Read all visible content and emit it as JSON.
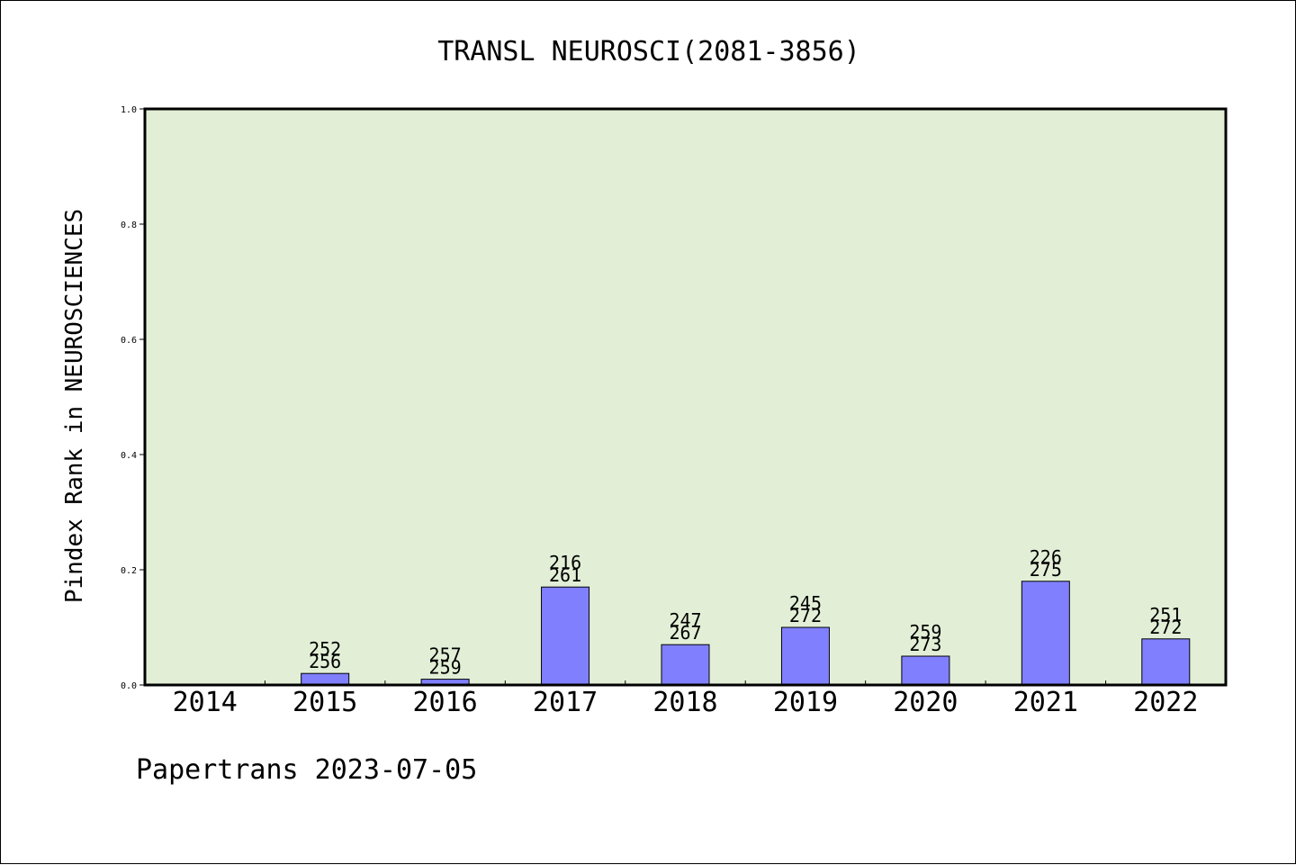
{
  "chart_data": {
    "type": "bar",
    "title": "TRANSL NEUROSCI(2081-3856)",
    "xlabel": "",
    "ylabel": "Pindex Rank in NEUROSCIENCES",
    "ylim": [
      0,
      1.0
    ],
    "yticks": [
      "0.0",
      "0.2",
      "0.4",
      "0.6",
      "0.8",
      "1.0"
    ],
    "grid": false,
    "background_color": "#e2efd6",
    "bar_color": "#8080ff",
    "categories": [
      "2014",
      "2015",
      "2016",
      "2017",
      "2018",
      "2019",
      "2020",
      "2021",
      "2022"
    ],
    "values": [
      0,
      0.02,
      0.01,
      0.17,
      0.07,
      0.1,
      0.05,
      0.18,
      0.08
    ],
    "labels_top": [
      "",
      "252",
      "257",
      "216",
      "247",
      "245",
      "259",
      "226",
      "251"
    ],
    "labels_bottom": [
      "",
      "256",
      "259",
      "261",
      "267",
      "272",
      "273",
      "275",
      "272"
    ],
    "footer": "Papertrans 2023-07-05"
  }
}
